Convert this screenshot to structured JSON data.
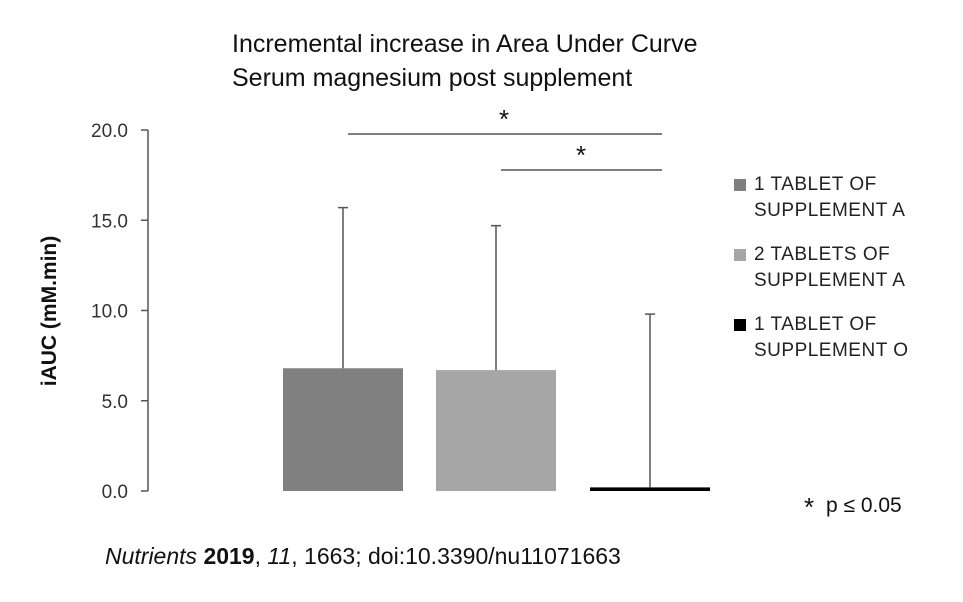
{
  "chart_data": {
    "type": "bar",
    "title_lines": [
      "Incremental increase in Area Under Curve",
      "Serum magnesium post supplement"
    ],
    "ylabel": "iAUC (mM.min)",
    "xlabel": "",
    "ylim": [
      0,
      20
    ],
    "yticks": [
      "0.0",
      "5.0",
      "10.0",
      "15.0",
      "20.0"
    ],
    "grid": false,
    "legend_position": "right",
    "categories": [
      "1 TABLET OF SUPPLEMENT A",
      "2 TABLETS OF SUPPLEMENT A",
      "1 TABLET OF SUPPLEMENT O"
    ],
    "values": [
      6.8,
      6.7,
      0.2
    ],
    "error_upper": [
      15.7,
      14.7,
      9.8
    ],
    "colors": [
      "#808080",
      "#a6a6a6",
      "#000000"
    ],
    "legend": [
      {
        "line1": "1 TABLET OF",
        "line2": "SUPPLEMENT A",
        "color": "#808080"
      },
      {
        "line1": "2 TABLETS OF",
        "line2": "SUPPLEMENT A",
        "color": "#a6a6a6"
      },
      {
        "line1": "1 TABLET OF",
        "line2": "SUPPLEMENT O",
        "color": "#000000"
      }
    ],
    "significance": [
      {
        "from": 0,
        "to": 2,
        "label": "*"
      },
      {
        "from": 1,
        "to": 2,
        "label": "*"
      }
    ],
    "significance_note": {
      "star": "*",
      "text": "p ≤ 0.05"
    }
  },
  "citation": {
    "journal": "Nutrients",
    "year": "2019",
    "sep1": ", ",
    "volume": "11",
    "rest": ", 1663; doi:10.3390/nu11071663"
  }
}
